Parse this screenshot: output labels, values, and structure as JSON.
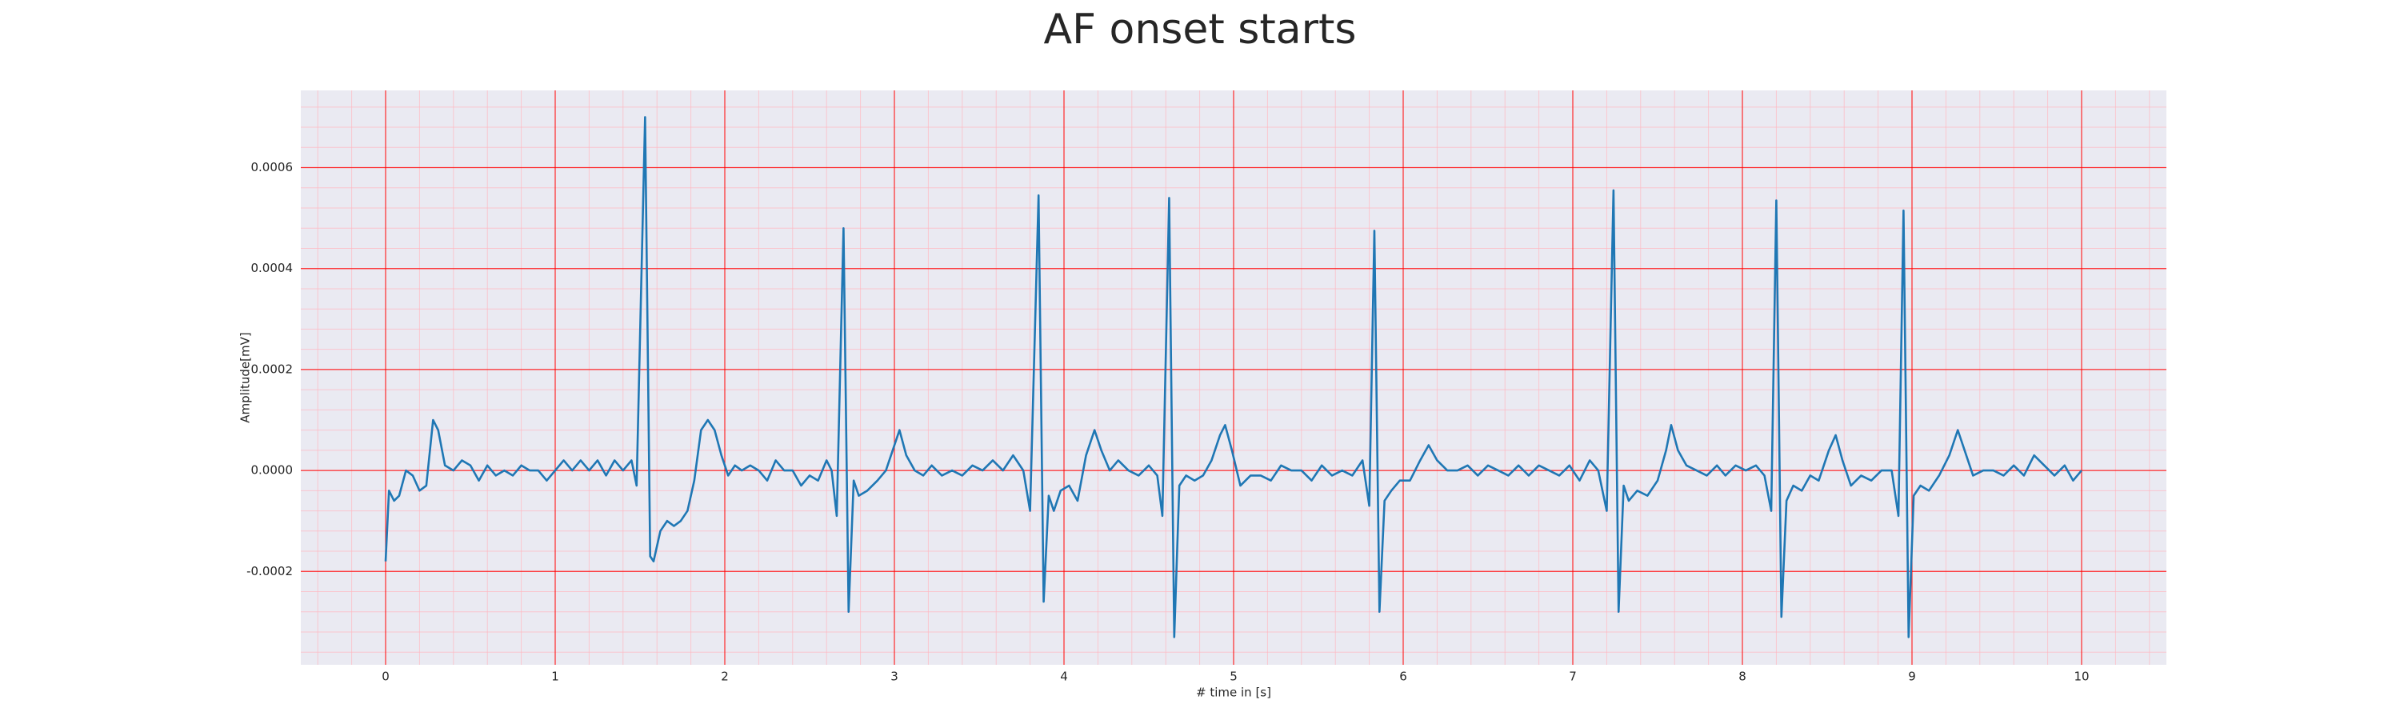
{
  "chart_data": {
    "type": "line",
    "title": "AF onset starts",
    "x_label": "# time in [s]",
    "y_label": "Amplitude[mV]",
    "color": "#1f77b4",
    "grid": true,
    "minor_grid": true,
    "grid_color": "#ff0000",
    "minor_grid_color": "#ffb6c1",
    "xlim": [
      -0.5,
      10.5
    ],
    "ylim": [
      -0.000385,
      0.000753
    ],
    "xticks": [
      0,
      1,
      2,
      3,
      4,
      5,
      6,
      7,
      8,
      9,
      10
    ],
    "yticks": [
      -0.0002,
      {
        "value": 0,
        "label": "0.0000"
      },
      0.0002,
      0.0004,
      0.0006
    ],
    "x": [
      0,
      0.02,
      0.05,
      0.08,
      0.12,
      0.16,
      0.2,
      0.24,
      0.28,
      0.31,
      0.35,
      0.4,
      0.45,
      0.5,
      0.55,
      0.6,
      0.65,
      0.7,
      0.75,
      0.8,
      0.85,
      0.9,
      0.95,
      1.0,
      1.05,
      1.1,
      1.15,
      1.2,
      1.25,
      1.3,
      1.35,
      1.4,
      1.45,
      1.48,
      1.53,
      1.56,
      1.58,
      1.62,
      1.66,
      1.7,
      1.74,
      1.78,
      1.82,
      1.86,
      1.9,
      1.94,
      1.98,
      2.02,
      2.06,
      2.1,
      2.15,
      2.2,
      2.25,
      2.3,
      2.35,
      2.4,
      2.45,
      2.5,
      2.55,
      2.6,
      2.63,
      2.66,
      2.7,
      2.73,
      2.76,
      2.79,
      2.84,
      2.9,
      2.95,
      3.0,
      3.03,
      3.07,
      3.12,
      3.17,
      3.22,
      3.28,
      3.34,
      3.4,
      3.46,
      3.52,
      3.58,
      3.64,
      3.7,
      3.76,
      3.8,
      3.85,
      3.88,
      3.91,
      3.94,
      3.98,
      4.03,
      4.08,
      4.13,
      4.18,
      4.22,
      4.27,
      4.32,
      4.38,
      4.44,
      4.5,
      4.55,
      4.58,
      4.62,
      4.65,
      4.68,
      4.72,
      4.77,
      4.82,
      4.87,
      4.92,
      4.95,
      4.99,
      5.04,
      5.1,
      5.16,
      5.22,
      5.28,
      5.34,
      5.4,
      5.46,
      5.52,
      5.58,
      5.64,
      5.7,
      5.76,
      5.8,
      5.83,
      5.86,
      5.89,
      5.93,
      5.98,
      6.04,
      6.1,
      6.15,
      6.2,
      6.26,
      6.32,
      6.38,
      6.44,
      6.5,
      6.56,
      6.62,
      6.68,
      6.74,
      6.8,
      6.86,
      6.92,
      6.98,
      7.04,
      7.1,
      7.15,
      7.2,
      7.24,
      7.27,
      7.3,
      7.33,
      7.38,
      7.44,
      7.5,
      7.55,
      7.58,
      7.62,
      7.67,
      7.73,
      7.79,
      7.85,
      7.9,
      7.96,
      8.02,
      8.08,
      8.13,
      8.17,
      8.2,
      8.23,
      8.26,
      8.3,
      8.35,
      8.4,
      8.45,
      8.51,
      8.55,
      8.59,
      8.64,
      8.7,
      8.76,
      8.82,
      8.88,
      8.92,
      8.95,
      8.98,
      9.01,
      9.05,
      9.1,
      9.16,
      9.22,
      9.27,
      9.31,
      9.36,
      9.42,
      9.48,
      9.54,
      9.6,
      9.66,
      9.72,
      9.78,
      9.84,
      9.9,
      9.95,
      10.0
    ],
    "values": [
      -0.00018,
      -4e-05,
      -6e-05,
      -5e-05,
      0,
      -1e-05,
      -4e-05,
      -3e-05,
      0.0001,
      8e-05,
      1e-05,
      0,
      2e-05,
      1e-05,
      -2e-05,
      1e-05,
      -1e-05,
      0,
      -1e-05,
      1e-05,
      0,
      0,
      -2e-05,
      0,
      2e-05,
      0,
      2e-05,
      0,
      2e-05,
      -1e-05,
      2e-05,
      0,
      2e-05,
      -3e-05,
      0.0007,
      -0.00017,
      -0.00018,
      -0.00012,
      -0.0001,
      -0.00011,
      -0.0001,
      -8e-05,
      -2e-05,
      8e-05,
      0.0001,
      8e-05,
      3e-05,
      -1e-05,
      1e-05,
      0,
      1e-05,
      0,
      -2e-05,
      2e-05,
      0,
      0,
      -3e-05,
      -1e-05,
      -2e-05,
      2e-05,
      0,
      -9e-05,
      0.00048,
      -0.00028,
      -2e-05,
      -5e-05,
      -4e-05,
      -2e-05,
      0,
      5e-05,
      8e-05,
      3e-05,
      0,
      -1e-05,
      1e-05,
      -1e-05,
      0,
      -1e-05,
      1e-05,
      0,
      2e-05,
      0,
      3e-05,
      0,
      -8e-05,
      0.000545,
      -0.00026,
      -5e-05,
      -8e-05,
      -4e-05,
      -3e-05,
      -6e-05,
      3e-05,
      8e-05,
      4e-05,
      0,
      2e-05,
      0,
      -1e-05,
      1e-05,
      -1e-05,
      -9e-05,
      0.00054,
      -0.00033,
      -3e-05,
      -1e-05,
      -2e-05,
      -1e-05,
      2e-05,
      7e-05,
      9e-05,
      4e-05,
      -3e-05,
      -1e-05,
      -1e-05,
      -2e-05,
      1e-05,
      0,
      0,
      -2e-05,
      1e-05,
      -1e-05,
      0,
      -1e-05,
      2e-05,
      -7e-05,
      0.000475,
      -0.00028,
      -6e-05,
      -4e-05,
      -2e-05,
      -2e-05,
      2e-05,
      5e-05,
      2e-05,
      0,
      0,
      1e-05,
      -1e-05,
      1e-05,
      0,
      -1e-05,
      1e-05,
      -1e-05,
      1e-05,
      0,
      -1e-05,
      1e-05,
      -2e-05,
      2e-05,
      0,
      -8e-05,
      0.000555,
      -0.00028,
      -3e-05,
      -6e-05,
      -4e-05,
      -5e-05,
      -2e-05,
      4e-05,
      9e-05,
      4e-05,
      1e-05,
      0,
      -1e-05,
      1e-05,
      -1e-05,
      1e-05,
      0,
      1e-05,
      -1e-05,
      -8e-05,
      0.000535,
      -0.00029,
      -6e-05,
      -3e-05,
      -4e-05,
      -1e-05,
      -2e-05,
      4e-05,
      7e-05,
      2e-05,
      -3e-05,
      -1e-05,
      -2e-05,
      0,
      0,
      -9e-05,
      0.000515,
      -0.00033,
      -5e-05,
      -3e-05,
      -4e-05,
      -1e-05,
      3e-05,
      8e-05,
      4e-05,
      -1e-05,
      0,
      0,
      -1e-05,
      1e-05,
      -1e-05,
      3e-05,
      1e-05,
      -1e-05,
      1e-05,
      -2e-05,
      0
    ]
  }
}
